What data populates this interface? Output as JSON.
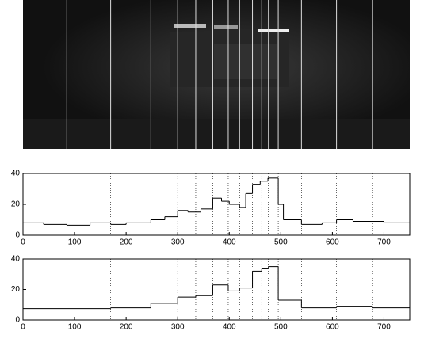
{
  "chart_data": [
    {
      "type": "step",
      "x": [
        0,
        40,
        85,
        130,
        170,
        200,
        248,
        275,
        300,
        320,
        345,
        368,
        385,
        400,
        420,
        432,
        445,
        460,
        475,
        495,
        505,
        540,
        580,
        608,
        640,
        700
      ],
      "values": [
        8,
        7,
        6.5,
        8,
        7,
        8,
        10,
        12,
        16,
        15,
        17,
        24,
        22,
        20,
        18,
        27,
        33,
        35,
        37,
        20,
        10,
        7,
        8,
        10,
        9,
        8
      ],
      "vlines": [
        85,
        170,
        248,
        300,
        335,
        368,
        398,
        420,
        445,
        463,
        476,
        495,
        540,
        608,
        678
      ],
      "color": "#000000",
      "xlim": [
        0,
        750
      ],
      "ylim": [
        0,
        40
      ],
      "xticks": [
        0,
        100,
        200,
        300,
        400,
        500,
        600,
        700
      ],
      "yticks": [
        0,
        20,
        40
      ]
    },
    {
      "type": "step",
      "x": [
        0,
        85,
        170,
        248,
        300,
        335,
        368,
        398,
        420,
        445,
        463,
        476,
        495,
        540,
        608,
        678
      ],
      "values": [
        7.5,
        7.5,
        8,
        11,
        15,
        16,
        23,
        19,
        21,
        32,
        34,
        35,
        13,
        8,
        9,
        8
      ],
      "vlines": [
        85,
        170,
        248,
        300,
        335,
        368,
        398,
        420,
        445,
        463,
        476,
        495,
        540,
        608,
        678
      ],
      "color": "#000000",
      "xlim": [
        0,
        750
      ],
      "ylim": [
        0,
        40
      ],
      "xticks": [
        0,
        100,
        200,
        300,
        400,
        500,
        600,
        700
      ],
      "yticks": [
        0,
        20,
        40
      ]
    }
  ]
}
